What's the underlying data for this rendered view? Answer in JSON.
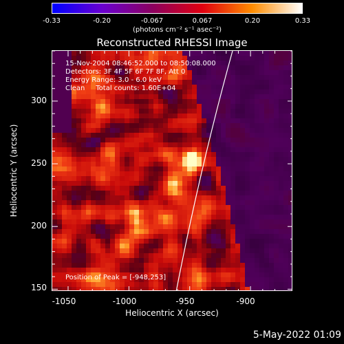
{
  "colorbar": {
    "ticks": [
      "-0.33",
      "-0.20",
      "-0.067",
      "0.067",
      "0.20",
      "0.33"
    ],
    "units": "(photons cm⁻² s⁻¹ asec⁻²)",
    "colors": [
      "#0000ff",
      "#6a00d0",
      "#8b0060",
      "#e00010",
      "#ff8c00",
      "#ffffff"
    ]
  },
  "plot": {
    "title": "Reconstructed RHESSI Image",
    "info": [
      "15-Nov-2004 08:46:52.000 to 08:50:08.000",
      "Detectors: 3F 4F 5F 6F 7F 8F, Att 0",
      "Energy Range: 3.0 - 6.0 keV",
      "Clean     Total counts: 1.60E+04"
    ],
    "peak_label": "Position of Peak = [-948,253]",
    "x_ticks": [
      "-1050",
      "-1000",
      "-950",
      "-900"
    ],
    "y_ticks": [
      "300",
      "250",
      "200",
      "150"
    ],
    "x_label": "Heliocentric X (arcsec)",
    "y_label": "Heliocentric Y (arcsec)",
    "x_range": [
      -1063,
      -865
    ],
    "y_range": [
      148,
      340
    ],
    "peak": [
      -948,
      253
    ]
  },
  "timestamp": "5-May-2022 01:09"
}
